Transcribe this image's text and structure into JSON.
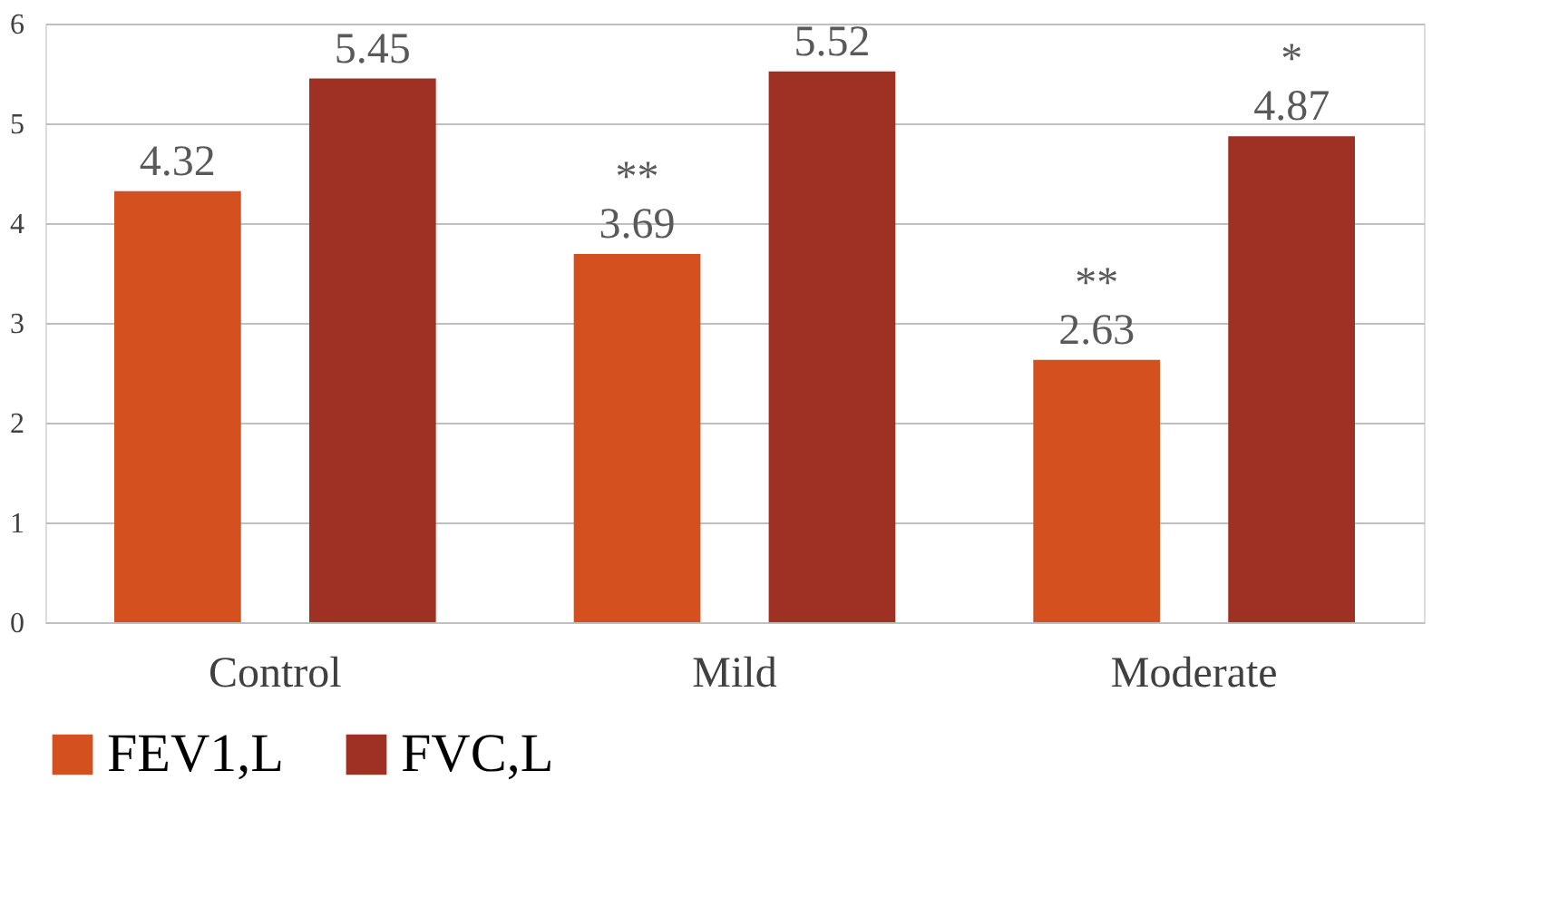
{
  "chart_data": {
    "type": "bar",
    "categories": [
      "Control",
      "Mild",
      "Moderate"
    ],
    "series": [
      {
        "name": "FEV1,L",
        "color": "#d4501e",
        "values": [
          4.32,
          3.69,
          2.63
        ],
        "value_labels": [
          "4.32",
          "**\n3.69",
          "**\n2.63"
        ]
      },
      {
        "name": "FVC,L",
        "color": "#9e3024",
        "values": [
          5.45,
          5.52,
          4.87
        ],
        "value_labels": [
          "5.45",
          "5.52",
          "*\n4.87"
        ]
      }
    ],
    "ylim": [
      0,
      6
    ],
    "yticks": [
      0,
      1,
      2,
      3,
      4,
      5,
      6
    ],
    "grid": "y",
    "legend": "bottom"
  }
}
